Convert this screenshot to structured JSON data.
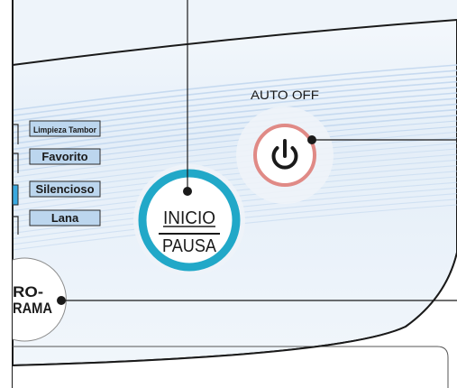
{
  "panel": {
    "auto_off_label": "AUTO OFF",
    "options": [
      {
        "label": "Limpieza Tambor"
      },
      {
        "label": "Favorito"
      },
      {
        "label": "Silencioso"
      },
      {
        "label": "Lana"
      }
    ],
    "start_button": {
      "line1": "INICIO",
      "line2": "PAUSA"
    },
    "program_button": {
      "line1": "RO-",
      "line2": "RAMA"
    },
    "power_icon": "power-icon"
  },
  "colors": {
    "panel_blue": "#dfeaf6",
    "stripe_blue": "#c2d7ee",
    "option_fill": "#bcd6ee",
    "start_ring": "#21a8c8",
    "power_ring": "#e08a86",
    "indicator": "#3aa9e0"
  }
}
